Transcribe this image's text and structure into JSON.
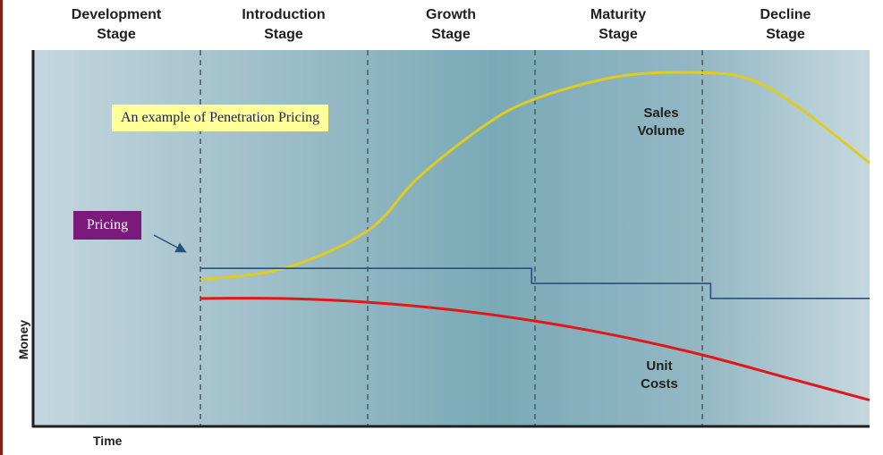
{
  "stages": [
    {
      "line1": "Development",
      "line2": "Stage"
    },
    {
      "line1": "Introduction",
      "line2": "Stage"
    },
    {
      "line1": "Growth",
      "line2": "Stage"
    },
    {
      "line1": "Maturity",
      "line2": "Stage"
    },
    {
      "line1": "Decline",
      "line2": "Stage"
    }
  ],
  "callouts": {
    "example": "An example of Penetration  Pricing",
    "pricing": "Pricing"
  },
  "curve_labels": {
    "sales": {
      "line1": "Sales",
      "line2": "Volume"
    },
    "costs": {
      "line1": "Unit",
      "line2": "Costs"
    }
  },
  "axes": {
    "x_label": "Time",
    "y_label": "Money"
  },
  "colors": {
    "sales": "#e0cc1e",
    "pricing": "#2a4f7a",
    "costs": "#e01818",
    "callout_example_bg": "#ffff99",
    "callout_pricing_bg": "#7a1a7a"
  },
  "chart_data": {
    "type": "line",
    "title": "",
    "xlabel": "Time",
    "ylabel": "Money",
    "x_range": [
      0,
      5
    ],
    "y_range": [
      0,
      100
    ],
    "stage_boundaries": [
      1,
      2,
      3,
      4
    ],
    "categories": [
      "Development Stage",
      "Introduction Stage",
      "Growth Stage",
      "Maturity Stage",
      "Decline Stage"
    ],
    "series": [
      {
        "name": "Sales Volume",
        "x": [
          1.0,
          1.5,
          2.0,
          2.3,
          2.7,
          3.0,
          3.5,
          4.0,
          4.3,
          4.6,
          5.0
        ],
        "y": [
          39,
          42,
          52,
          66,
          80,
          87,
          93,
          94,
          92,
          84,
          70
        ]
      },
      {
        "name": "Pricing",
        "step": true,
        "x": [
          1.0,
          2.98,
          2.98,
          4.05,
          4.05,
          5.0
        ],
        "y": [
          42,
          42,
          38,
          38,
          34,
          34
        ]
      },
      {
        "name": "Unit Costs",
        "x": [
          1.0,
          1.5,
          2.0,
          2.5,
          3.0,
          3.5,
          4.0,
          4.5,
          5.0
        ],
        "y": [
          34,
          34,
          33,
          31,
          28,
          24,
          19,
          13,
          7
        ]
      }
    ]
  }
}
